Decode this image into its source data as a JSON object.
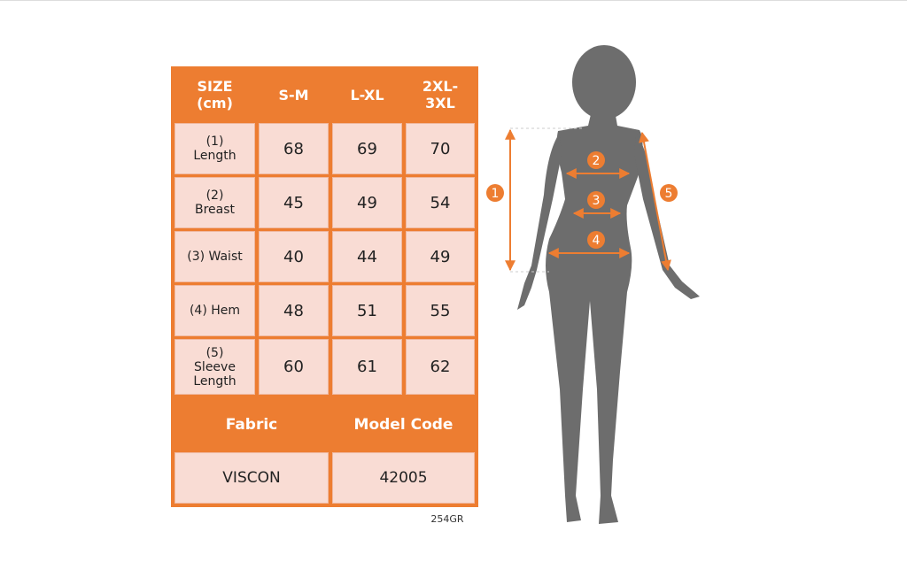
{
  "table": {
    "header": [
      "SIZE (cm)",
      "S-M",
      "L-XL",
      "2XL-3XL"
    ],
    "rows": [
      [
        "(1) Length",
        68,
        69,
        70
      ],
      [
        "(2) Breast",
        45,
        49,
        54
      ],
      [
        "(3) Waist",
        40,
        44,
        49
      ],
      [
        "(4) Hem",
        48,
        51,
        55
      ],
      [
        "(5) Sleeve Length",
        60,
        61,
        62
      ]
    ],
    "info_header": [
      "Fabric",
      "Model Code"
    ],
    "info_row": [
      "VISCON",
      42005
    ]
  },
  "code": "254GR",
  "figure": {
    "markers": [
      "1",
      "2",
      "3",
      "4",
      "5"
    ]
  }
}
